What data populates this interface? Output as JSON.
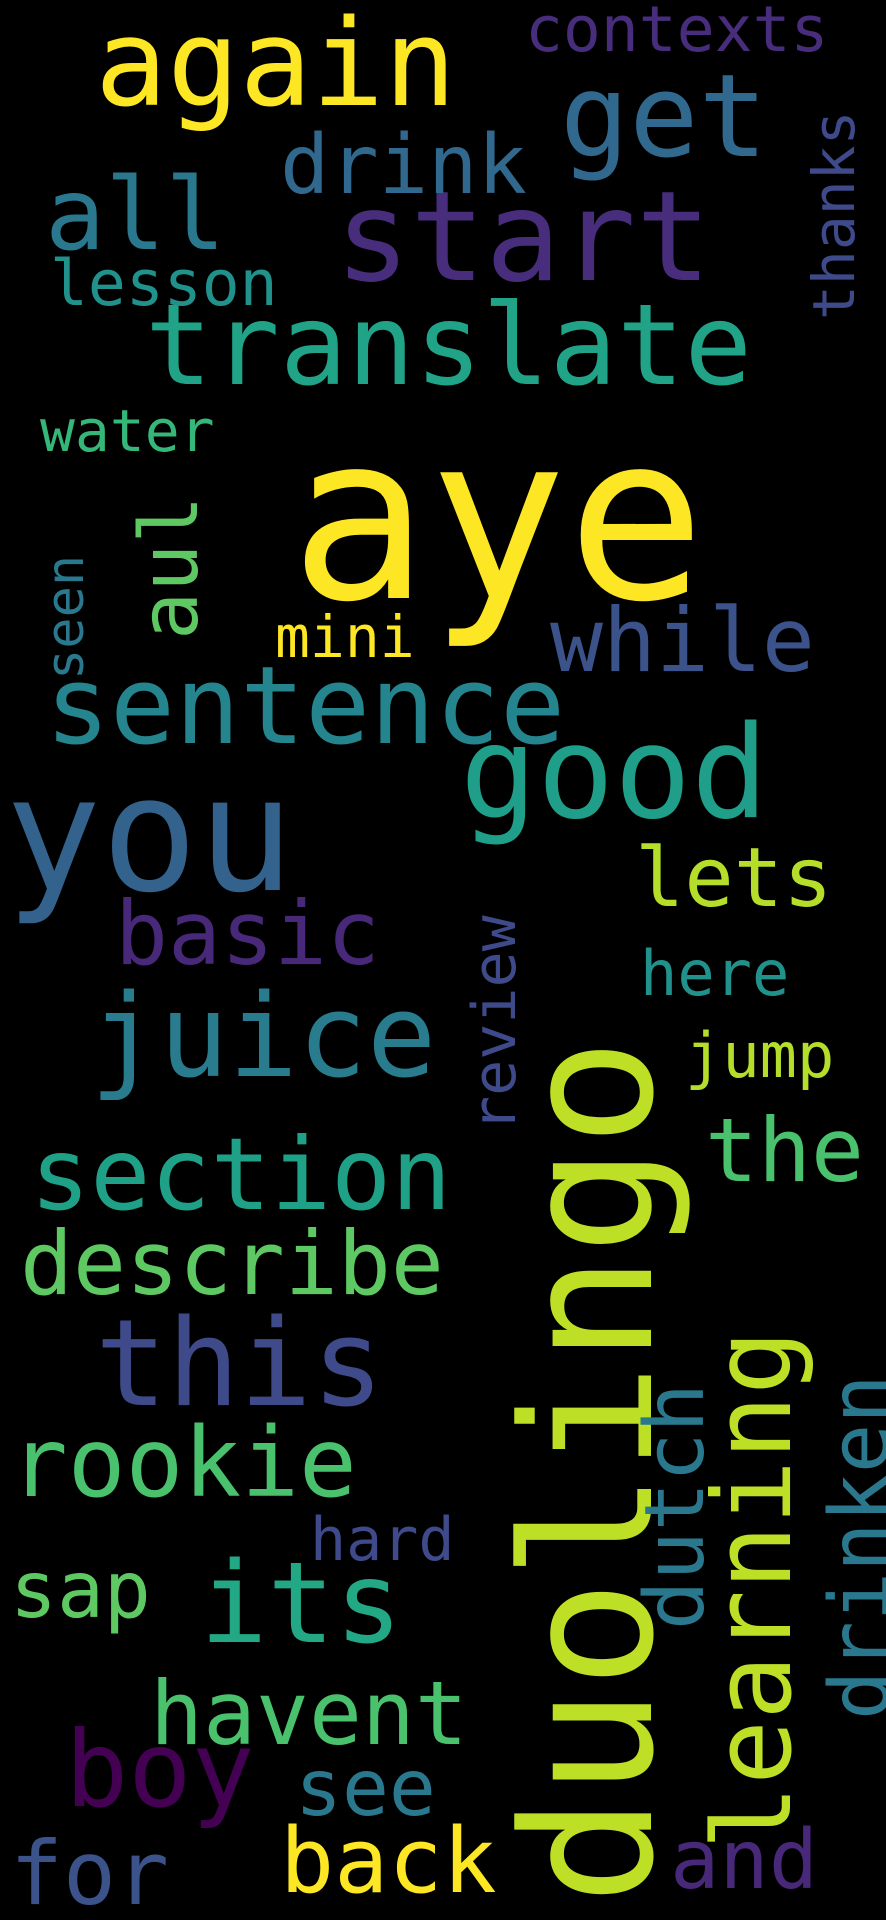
{
  "words": [
    {
      "text": "aye",
      "color": "#FDE725"
    },
    {
      "text": "duolingo",
      "color": "#BDDF26"
    },
    {
      "text": "you",
      "color": "#33638D"
    },
    {
      "text": "again",
      "color": "#FDE725"
    },
    {
      "text": "good",
      "color": "#1F9E89"
    },
    {
      "text": "start",
      "color": "#472D7B"
    },
    {
      "text": "translate",
      "color": "#20A387"
    },
    {
      "text": "sentence",
      "color": "#25858E"
    },
    {
      "text": "learning",
      "color": "#BDDF26"
    },
    {
      "text": "this",
      "color": "#3E4A89"
    },
    {
      "text": "get",
      "color": "#31688E"
    },
    {
      "text": "juice",
      "color": "#287C8E"
    },
    {
      "text": "section",
      "color": "#1FA187"
    },
    {
      "text": "its",
      "color": "#22A884"
    },
    {
      "text": "rookie",
      "color": "#4AC16D"
    },
    {
      "text": "boy",
      "color": "#440154"
    },
    {
      "text": "all",
      "color": "#2A788E"
    },
    {
      "text": "describe",
      "color": "#5EC962"
    },
    {
      "text": "while",
      "color": "#3B528B"
    },
    {
      "text": "basic",
      "color": "#482878"
    },
    {
      "text": "back",
      "color": "#FDE725"
    },
    {
      "text": "havent",
      "color": "#4AC16D"
    },
    {
      "text": "drink",
      "color": "#31688E"
    },
    {
      "text": "for",
      "color": "#3B528B"
    },
    {
      "text": "and",
      "color": "#482878"
    },
    {
      "text": "lets",
      "color": "#B5DE2B"
    },
    {
      "text": "the",
      "color": "#4AC16D"
    },
    {
      "text": "contexts",
      "color": "#472D7B"
    },
    {
      "text": "aul",
      "color": "#5EC962"
    },
    {
      "text": "dutch",
      "color": "#2A788E"
    },
    {
      "text": "drinken",
      "color": "#2A788E"
    },
    {
      "text": "sap",
      "color": "#5EC962"
    },
    {
      "text": "see",
      "color": "#2A788E"
    },
    {
      "text": "lesson",
      "color": "#21918C"
    },
    {
      "text": "review",
      "color": "#3E4A89"
    },
    {
      "text": "water",
      "color": "#35B779"
    },
    {
      "text": "here",
      "color": "#21918C"
    },
    {
      "text": "thanks",
      "color": "#3E4A89"
    },
    {
      "text": "jump",
      "color": "#B5DE2B"
    },
    {
      "text": "hard",
      "color": "#3E4A89"
    },
    {
      "text": "mini",
      "color": "#FDE725"
    },
    {
      "text": "seen",
      "color": "#2A788E"
    }
  ]
}
